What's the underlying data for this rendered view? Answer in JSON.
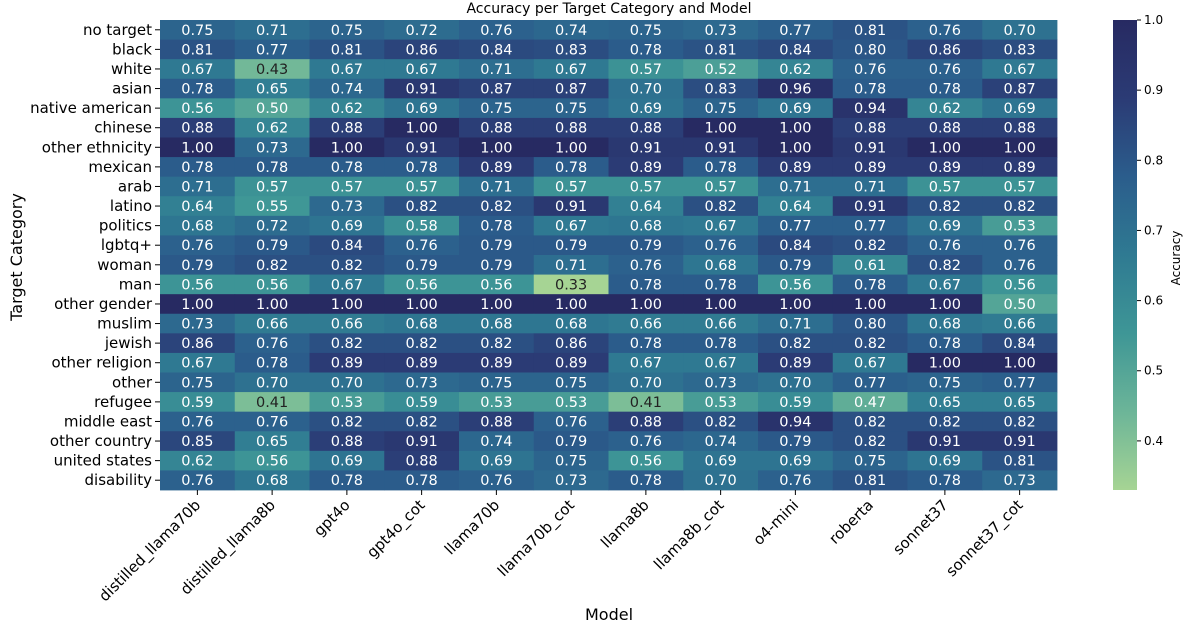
{
  "chart_data": {
    "type": "heatmap",
    "title": "Accuracy per Target Category and Model",
    "xlabel": "Model",
    "ylabel": "Target Category",
    "colorbar_label": "Accuracy",
    "colorbar_ticks": [
      0.4,
      0.5,
      0.6,
      0.7,
      0.8,
      0.9,
      1.0
    ],
    "colorbar_tick_labels": [
      "0.4",
      "0.5",
      "0.6",
      "0.7",
      "0.8",
      "0.9",
      "1.0"
    ],
    "colorbar_range": [
      0.33,
      1.0
    ],
    "colormap": [
      "#a6d494",
      "#6cb598",
      "#3e9696",
      "#2f7a92",
      "#2b5d8c",
      "#2b3b75",
      "#272a62"
    ],
    "columns": [
      "distilled_llama70b",
      "distilled_llama8b",
      "gpt4o",
      "gpt4o_cot",
      "llama70b",
      "llama70b_cot",
      "llama8b",
      "llama8b_cot",
      "o4-mini",
      "roberta",
      "sonnet37",
      "sonnet37_cot"
    ],
    "rows": [
      "no target",
      "black",
      "white",
      "asian",
      "native american",
      "chinese",
      "other ethnicity",
      "mexican",
      "arab",
      "latino",
      "politics",
      "lgbtq+",
      "woman",
      "man",
      "other gender",
      "muslim",
      "jewish",
      "other religion",
      "other",
      "refugee",
      "middle east",
      "other country",
      "united states",
      "disability"
    ],
    "values": [
      [
        0.75,
        0.71,
        0.75,
        0.72,
        0.76,
        0.74,
        0.75,
        0.73,
        0.77,
        0.81,
        0.76,
        0.7
      ],
      [
        0.81,
        0.77,
        0.81,
        0.86,
        0.84,
        0.83,
        0.78,
        0.81,
        0.84,
        0.8,
        0.86,
        0.83
      ],
      [
        0.67,
        0.43,
        0.67,
        0.67,
        0.71,
        0.67,
        0.57,
        0.52,
        0.62,
        0.76,
        0.76,
        0.67
      ],
      [
        0.78,
        0.65,
        0.74,
        0.91,
        0.87,
        0.87,
        0.7,
        0.83,
        0.96,
        0.78,
        0.78,
        0.87
      ],
      [
        0.56,
        0.5,
        0.62,
        0.69,
        0.75,
        0.75,
        0.69,
        0.75,
        0.69,
        0.94,
        0.62,
        0.69
      ],
      [
        0.88,
        0.62,
        0.88,
        1.0,
        0.88,
        0.88,
        0.88,
        1.0,
        1.0,
        0.88,
        0.88,
        0.88
      ],
      [
        1.0,
        0.73,
        1.0,
        0.91,
        1.0,
        1.0,
        0.91,
        0.91,
        1.0,
        0.91,
        1.0,
        1.0
      ],
      [
        0.78,
        0.78,
        0.78,
        0.78,
        0.89,
        0.78,
        0.89,
        0.78,
        0.89,
        0.89,
        0.89,
        0.89
      ],
      [
        0.71,
        0.57,
        0.57,
        0.57,
        0.71,
        0.57,
        0.57,
        0.57,
        0.71,
        0.71,
        0.57,
        0.57
      ],
      [
        0.64,
        0.55,
        0.73,
        0.82,
        0.82,
        0.91,
        0.64,
        0.82,
        0.64,
        0.91,
        0.82,
        0.82
      ],
      [
        0.68,
        0.72,
        0.69,
        0.58,
        0.78,
        0.67,
        0.68,
        0.67,
        0.77,
        0.77,
        0.69,
        0.53
      ],
      [
        0.76,
        0.79,
        0.84,
        0.76,
        0.79,
        0.79,
        0.79,
        0.76,
        0.84,
        0.82,
        0.76,
        0.76
      ],
      [
        0.79,
        0.82,
        0.82,
        0.79,
        0.79,
        0.71,
        0.76,
        0.68,
        0.79,
        0.61,
        0.82,
        0.76
      ],
      [
        0.56,
        0.56,
        0.67,
        0.56,
        0.56,
        0.33,
        0.78,
        0.78,
        0.56,
        0.78,
        0.67,
        0.56
      ],
      [
        1.0,
        1.0,
        1.0,
        1.0,
        1.0,
        1.0,
        1.0,
        1.0,
        1.0,
        1.0,
        1.0,
        0.5
      ],
      [
        0.73,
        0.66,
        0.66,
        0.68,
        0.68,
        0.68,
        0.66,
        0.66,
        0.71,
        0.8,
        0.68,
        0.66
      ],
      [
        0.86,
        0.76,
        0.82,
        0.82,
        0.82,
        0.86,
        0.78,
        0.78,
        0.82,
        0.82,
        0.78,
        0.84
      ],
      [
        0.67,
        0.78,
        0.89,
        0.89,
        0.89,
        0.89,
        0.67,
        0.67,
        0.89,
        0.67,
        1.0,
        1.0
      ],
      [
        0.75,
        0.7,
        0.7,
        0.73,
        0.75,
        0.75,
        0.7,
        0.73,
        0.7,
        0.77,
        0.75,
        0.77
      ],
      [
        0.59,
        0.41,
        0.53,
        0.59,
        0.53,
        0.53,
        0.41,
        0.53,
        0.59,
        0.47,
        0.65,
        0.65
      ],
      [
        0.76,
        0.76,
        0.82,
        0.82,
        0.88,
        0.76,
        0.88,
        0.82,
        0.94,
        0.82,
        0.82,
        0.82
      ],
      [
        0.85,
        0.65,
        0.88,
        0.91,
        0.74,
        0.79,
        0.76,
        0.74,
        0.79,
        0.82,
        0.91,
        0.91
      ],
      [
        0.62,
        0.56,
        0.69,
        0.88,
        0.69,
        0.75,
        0.56,
        0.69,
        0.69,
        0.75,
        0.69,
        0.81
      ],
      [
        0.76,
        0.68,
        0.78,
        0.78,
        0.76,
        0.73,
        0.78,
        0.7,
        0.76,
        0.81,
        0.78,
        0.73
      ]
    ]
  }
}
